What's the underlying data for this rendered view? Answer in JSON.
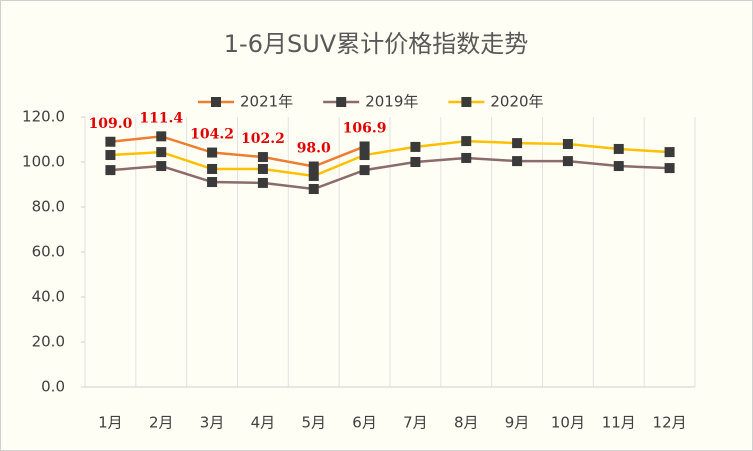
{
  "chart_data": {
    "type": "line",
    "title": "1-6月SUV累计价格指数走势",
    "categories": [
      "1月",
      "2月",
      "3月",
      "4月",
      "5月",
      "6月",
      "7月",
      "8月",
      "9月",
      "10月",
      "11月",
      "12月"
    ],
    "series": [
      {
        "name": "2021年",
        "color": "#ed7d31",
        "values": [
          109.0,
          111.4,
          104.2,
          102.2,
          98.0,
          106.9,
          null,
          null,
          null,
          null,
          null,
          null
        ],
        "value_labels": [
          "109.0",
          "111.4",
          "104.2",
          "102.2",
          "98.0",
          "106.9",
          null,
          null,
          null,
          null,
          null,
          null
        ]
      },
      {
        "name": "2019年",
        "color": "#8b6b6b",
        "values": [
          96.4,
          98.2,
          91.1,
          90.7,
          88.0,
          96.4,
          100.0,
          101.8,
          100.4,
          100.4,
          98.2,
          97.3
        ]
      },
      {
        "name": "2020年",
        "color": "#ffc000",
        "values": [
          103.1,
          104.4,
          96.9,
          96.9,
          93.8,
          103.1,
          106.7,
          109.3,
          108.4,
          108.0,
          105.8,
          104.4
        ]
      }
    ],
    "marker_color": "#3a3a3a",
    "label_color": "#e00000",
    "ylim": [
      0,
      120
    ],
    "yticks": [
      {
        "value": 0,
        "label": "0.0"
      },
      {
        "value": 20,
        "label": "20.0"
      },
      {
        "value": 40,
        "label": "40.0"
      },
      {
        "value": 60,
        "label": "60.0"
      },
      {
        "value": 80,
        "label": "80.0"
      },
      {
        "value": 100,
        "label": "100.0"
      },
      {
        "value": 120,
        "label": "120.0"
      }
    ],
    "grid": true,
    "legend": "top"
  }
}
